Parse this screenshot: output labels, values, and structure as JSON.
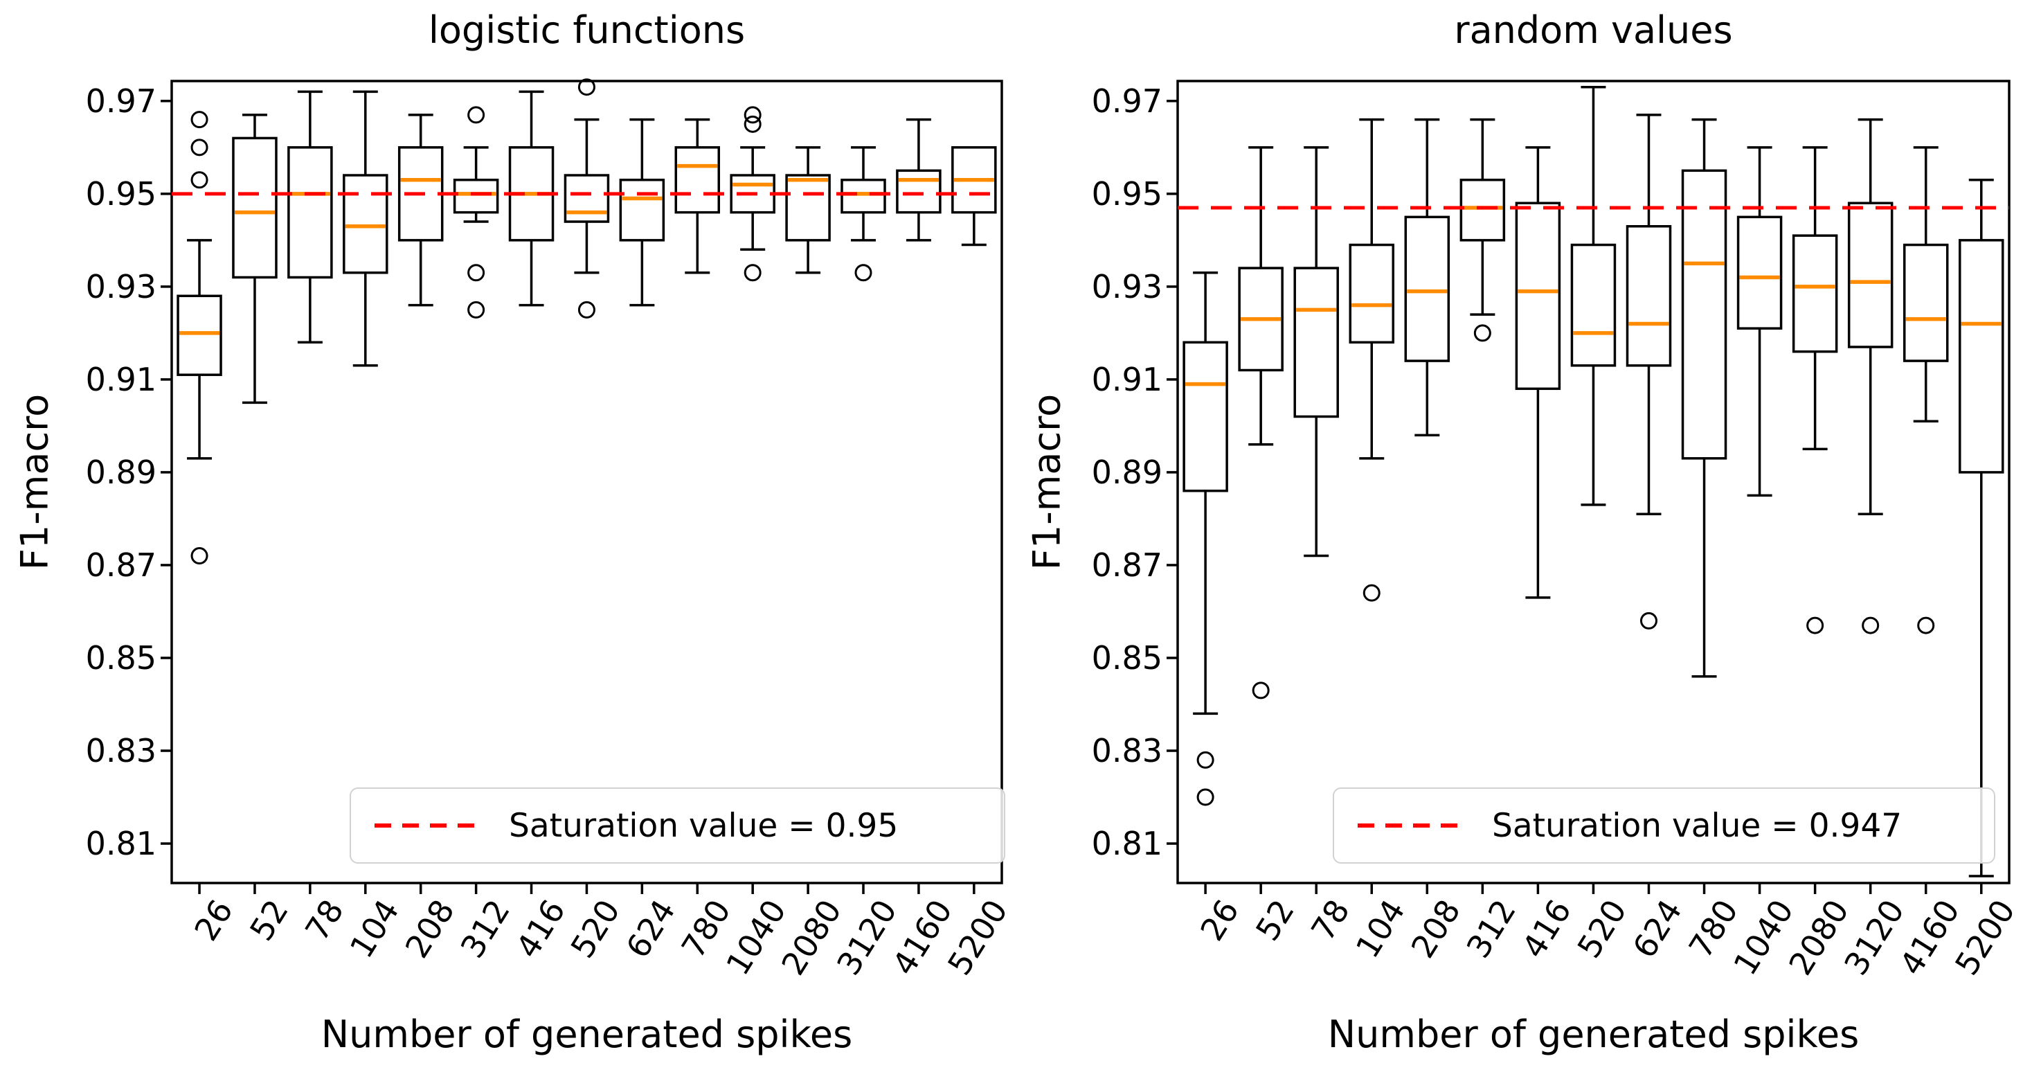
{
  "figure": {
    "background": "#ffffff"
  },
  "colors": {
    "box_stroke": "#000000",
    "median_line": "#ff8c00",
    "saturation_line": "#ff0000",
    "axis": "#000000",
    "legend_border": "#d2d2d2",
    "text": "#000000"
  },
  "chart_data": [
    {
      "type": "boxplot",
      "title": "logistic functions",
      "ylabel": "F1-macro",
      "xlabel": "Number of generated spikes",
      "legend_label": "Saturation value = 0.95",
      "legend_position": "lower right",
      "saturation_value": 0.95,
      "ylim": [
        0.8015,
        0.9743
      ],
      "yticks": [
        0.97,
        0.95,
        0.93,
        0.91,
        0.89,
        0.87,
        0.85,
        0.83,
        0.81
      ],
      "grid": false,
      "categories": [
        "26",
        "52",
        "78",
        "104",
        "208",
        "312",
        "416",
        "520",
        "624",
        "780",
        "1040",
        "2080",
        "3120",
        "4160",
        "5200"
      ],
      "boxes": [
        {
          "category": "26",
          "whisker_low": 0.893,
          "q1": 0.911,
          "median": 0.92,
          "q3": 0.928,
          "whisker_high": 0.94,
          "outliers": [
            0.966,
            0.96,
            0.953,
            0.872
          ]
        },
        {
          "category": "52",
          "whisker_low": 0.905,
          "q1": 0.932,
          "median": 0.946,
          "q3": 0.962,
          "whisker_high": 0.967,
          "outliers": []
        },
        {
          "category": "78",
          "whisker_low": 0.918,
          "q1": 0.932,
          "median": 0.95,
          "q3": 0.96,
          "whisker_high": 0.972,
          "outliers": []
        },
        {
          "category": "104",
          "whisker_low": 0.913,
          "q1": 0.933,
          "median": 0.943,
          "q3": 0.954,
          "whisker_high": 0.972,
          "outliers": []
        },
        {
          "category": "208",
          "whisker_low": 0.926,
          "q1": 0.94,
          "median": 0.953,
          "q3": 0.96,
          "whisker_high": 0.967,
          "outliers": []
        },
        {
          "category": "312",
          "whisker_low": 0.944,
          "q1": 0.946,
          "median": 0.95,
          "q3": 0.953,
          "whisker_high": 0.96,
          "outliers": [
            0.967,
            0.933,
            0.925
          ]
        },
        {
          "category": "416",
          "whisker_low": 0.926,
          "q1": 0.94,
          "median": 0.95,
          "q3": 0.96,
          "whisker_high": 0.972,
          "outliers": []
        },
        {
          "category": "520",
          "whisker_low": 0.933,
          "q1": 0.944,
          "median": 0.946,
          "q3": 0.954,
          "whisker_high": 0.966,
          "outliers": [
            0.973,
            0.925
          ]
        },
        {
          "category": "624",
          "whisker_low": 0.926,
          "q1": 0.94,
          "median": 0.949,
          "q3": 0.953,
          "whisker_high": 0.966,
          "outliers": []
        },
        {
          "category": "780",
          "whisker_low": 0.933,
          "q1": 0.946,
          "median": 0.956,
          "q3": 0.96,
          "whisker_high": 0.966,
          "outliers": []
        },
        {
          "category": "1040",
          "whisker_low": 0.938,
          "q1": 0.946,
          "median": 0.952,
          "q3": 0.954,
          "whisker_high": 0.96,
          "outliers": [
            0.967,
            0.965,
            0.933
          ]
        },
        {
          "category": "2080",
          "whisker_low": 0.933,
          "q1": 0.94,
          "median": 0.953,
          "q3": 0.954,
          "whisker_high": 0.96,
          "outliers": []
        },
        {
          "category": "3120",
          "whisker_low": 0.94,
          "q1": 0.946,
          "median": 0.95,
          "q3": 0.953,
          "whisker_high": 0.96,
          "outliers": [
            0.933
          ]
        },
        {
          "category": "4160",
          "whisker_low": 0.94,
          "q1": 0.946,
          "median": 0.953,
          "q3": 0.955,
          "whisker_high": 0.966,
          "outliers": []
        },
        {
          "category": "5200",
          "whisker_low": 0.939,
          "q1": 0.946,
          "median": 0.953,
          "q3": 0.96,
          "whisker_high": 0.96,
          "outliers": []
        }
      ]
    },
    {
      "type": "boxplot",
      "title": "random values",
      "ylabel": "F1-macro",
      "xlabel": "Number of generated spikes",
      "legend_label": "Saturation value = 0.947",
      "legend_position": "lower right",
      "saturation_value": 0.947,
      "ylim": [
        0.8015,
        0.9743
      ],
      "yticks": [
        0.97,
        0.95,
        0.93,
        0.91,
        0.89,
        0.87,
        0.85,
        0.83,
        0.81
      ],
      "grid": false,
      "categories": [
        "26",
        "52",
        "78",
        "104",
        "208",
        "312",
        "416",
        "520",
        "624",
        "780",
        "1040",
        "2080",
        "3120",
        "4160",
        "5200"
      ],
      "boxes": [
        {
          "category": "26",
          "whisker_low": 0.838,
          "q1": 0.886,
          "median": 0.909,
          "q3": 0.918,
          "whisker_high": 0.933,
          "outliers": [
            0.828,
            0.82
          ]
        },
        {
          "category": "52",
          "whisker_low": 0.896,
          "q1": 0.912,
          "median": 0.923,
          "q3": 0.934,
          "whisker_high": 0.96,
          "outliers": [
            0.843
          ]
        },
        {
          "category": "78",
          "whisker_low": 0.872,
          "q1": 0.902,
          "median": 0.925,
          "q3": 0.934,
          "whisker_high": 0.96,
          "outliers": []
        },
        {
          "category": "104",
          "whisker_low": 0.893,
          "q1": 0.918,
          "median": 0.926,
          "q3": 0.939,
          "whisker_high": 0.966,
          "outliers": [
            0.864
          ]
        },
        {
          "category": "208",
          "whisker_low": 0.898,
          "q1": 0.914,
          "median": 0.929,
          "q3": 0.945,
          "whisker_high": 0.966,
          "outliers": []
        },
        {
          "category": "312",
          "whisker_low": 0.924,
          "q1": 0.94,
          "median": 0.947,
          "q3": 0.953,
          "whisker_high": 0.966,
          "outliers": [
            0.92
          ]
        },
        {
          "category": "416",
          "whisker_low": 0.863,
          "q1": 0.908,
          "median": 0.929,
          "q3": 0.948,
          "whisker_high": 0.96,
          "outliers": []
        },
        {
          "category": "520",
          "whisker_low": 0.883,
          "q1": 0.913,
          "median": 0.92,
          "q3": 0.939,
          "whisker_high": 0.973,
          "outliers": []
        },
        {
          "category": "624",
          "whisker_low": 0.881,
          "q1": 0.913,
          "median": 0.922,
          "q3": 0.943,
          "whisker_high": 0.967,
          "outliers": [
            0.858
          ]
        },
        {
          "category": "780",
          "whisker_low": 0.846,
          "q1": 0.893,
          "median": 0.935,
          "q3": 0.955,
          "whisker_high": 0.966,
          "outliers": []
        },
        {
          "category": "1040",
          "whisker_low": 0.885,
          "q1": 0.921,
          "median": 0.932,
          "q3": 0.945,
          "whisker_high": 0.96,
          "outliers": []
        },
        {
          "category": "2080",
          "whisker_low": 0.895,
          "q1": 0.916,
          "median": 0.93,
          "q3": 0.941,
          "whisker_high": 0.96,
          "outliers": [
            0.857
          ]
        },
        {
          "category": "3120",
          "whisker_low": 0.881,
          "q1": 0.917,
          "median": 0.931,
          "q3": 0.948,
          "whisker_high": 0.966,
          "outliers": [
            0.857
          ]
        },
        {
          "category": "4160",
          "whisker_low": 0.901,
          "q1": 0.914,
          "median": 0.923,
          "q3": 0.939,
          "whisker_high": 0.96,
          "outliers": [
            0.857
          ]
        },
        {
          "category": "5200",
          "whisker_low": 0.803,
          "q1": 0.89,
          "median": 0.922,
          "q3": 0.94,
          "whisker_high": 0.953,
          "outliers": []
        }
      ]
    }
  ]
}
